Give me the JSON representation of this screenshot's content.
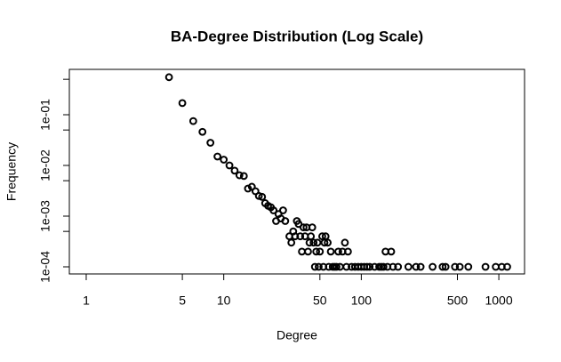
{
  "chart_data": {
    "type": "scatter",
    "title": "BA-Degree Distribution (Log Scale)",
    "x_label": "Degree",
    "y_label": "Frequency",
    "x": [
      4,
      5,
      6,
      7,
      8,
      9,
      10,
      11,
      12,
      13,
      14,
      15,
      16,
      17,
      18,
      19,
      20,
      21,
      22,
      23,
      24,
      25,
      26,
      27,
      28,
      30,
      31,
      32,
      33,
      34,
      35,
      36,
      37,
      38,
      39,
      40,
      41,
      42,
      43,
      44,
      45,
      46,
      47,
      48,
      49,
      50,
      52,
      53,
      54,
      55,
      57,
      58,
      60,
      62,
      64,
      66,
      68,
      70,
      73,
      76,
      78,
      80,
      85,
      90,
      95,
      100,
      105,
      110,
      115,
      125,
      135,
      140,
      145,
      150,
      155,
      165,
      170,
      185,
      220,
      250,
      270,
      330,
      390,
      410,
      480,
      520,
      600,
      800,
      950,
      1050,
      1150
    ],
    "y": [
      0.55,
      0.17,
      0.075,
      0.046,
      0.028,
      0.015,
      0.013,
      0.01,
      0.0079,
      0.0064,
      0.0062,
      0.0035,
      0.0038,
      0.0031,
      0.0025,
      0.0024,
      0.0018,
      0.0016,
      0.0015,
      0.0013,
      0.0008,
      0.0011,
      0.0009,
      0.0013,
      0.0008,
      0.0004,
      0.0003,
      0.0005,
      0.0004,
      0.0008,
      0.0007,
      0.0004,
      0.0002,
      0.0006,
      0.0004,
      0.0006,
      0.0002,
      0.0003,
      0.0004,
      0.0006,
      0.0003,
      0.0001,
      0.0002,
      0.0003,
      0.0001,
      0.0002,
      0.0004,
      0.0001,
      0.0003,
      0.0004,
      0.0003,
      0.0001,
      0.0002,
      0.0001,
      0.0001,
      0.0001,
      0.0002,
      0.0001,
      0.0002,
      0.0003,
      0.0001,
      0.0002,
      0.0001,
      0.0001,
      0.0001,
      0.0001,
      0.0001,
      0.0001,
      0.0001,
      0.0001,
      0.0001,
      0.0001,
      0.0001,
      0.0002,
      0.0001,
      0.0002,
      0.0001,
      0.0001,
      0.0001,
      0.0001,
      0.0001,
      0.0001,
      0.0001,
      0.0001,
      0.0001,
      0.0001,
      0.0001,
      0.0001,
      0.0001,
      0.0001,
      0.0001
    ],
    "color": "#000000",
    "xlog": true,
    "ylog": true,
    "xlim": [
      0.754,
      1538
    ],
    "ylim": [
      7.24e-05,
      0.785
    ],
    "xticks": [
      1,
      5,
      10,
      50,
      100,
      500,
      1000
    ],
    "yticks": [
      {
        "value": 0.0001,
        "label": "1e-04"
      },
      {
        "value": 0.001,
        "label": "1e-03"
      },
      {
        "value": 0.01,
        "label": "1e-02"
      },
      {
        "value": 0.1,
        "label": "1e-01"
      }
    ],
    "yminor_ticks": [
      0.0005,
      0.005,
      0.05,
      0.5
    ]
  }
}
